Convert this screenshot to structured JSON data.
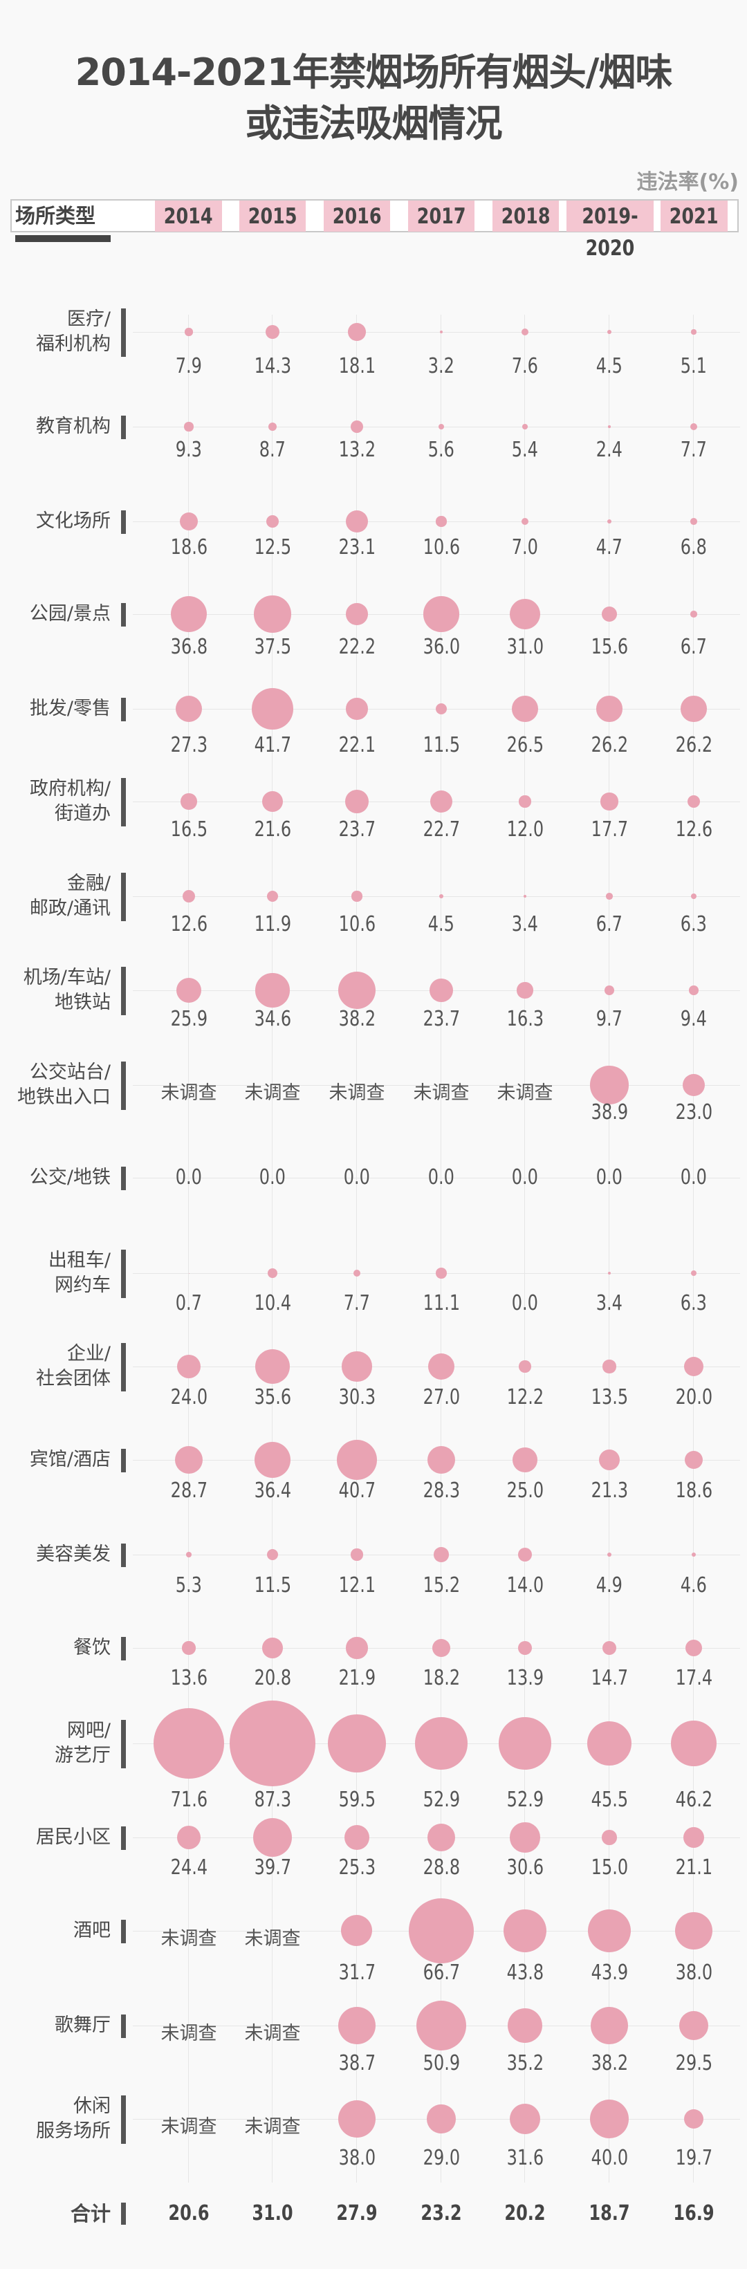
{
  "title": {
    "line1": "2014-2021年禁烟场所有烟头/烟味",
    "line2": "或违法吸烟情况"
  },
  "unit_label": "违法率(%)",
  "header": {
    "type_label": "场所类型",
    "years": [
      "2014",
      "2015",
      "2016",
      "2017",
      "2018",
      "2019-2020",
      "2021"
    ]
  },
  "colors": {
    "bubble": "#e9a3b3",
    "year_chip": "#f4c6d1",
    "text": "#4a4a4a"
  },
  "not_surveyed_label": "未调查",
  "chart_data": {
    "type": "bubble-table",
    "title": "2014-2021年禁烟场所有烟头/烟味或违法吸烟情况",
    "value_label": "违法率(%)",
    "categories": [
      "2014",
      "2015",
      "2016",
      "2017",
      "2018",
      "2019-2020",
      "2021"
    ],
    "rows": [
      {
        "label": [
          "医疗/",
          "福利机构"
        ],
        "values": [
          7.9,
          14.3,
          18.1,
          3.2,
          7.6,
          4.5,
          5.1
        ]
      },
      {
        "label": [
          "教育机构"
        ],
        "values": [
          9.3,
          8.7,
          13.2,
          5.6,
          5.4,
          2.4,
          7.7
        ]
      },
      {
        "label": [
          "文化场所"
        ],
        "values": [
          18.6,
          12.5,
          23.1,
          10.6,
          7.0,
          4.7,
          6.8
        ]
      },
      {
        "label": [
          "公园/景点"
        ],
        "values": [
          36.8,
          37.5,
          22.2,
          36.0,
          31.0,
          15.6,
          6.7
        ]
      },
      {
        "label": [
          "批发/零售"
        ],
        "values": [
          27.3,
          41.7,
          22.1,
          11.5,
          26.5,
          26.2,
          26.2
        ]
      },
      {
        "label": [
          "政府机构/",
          "街道办"
        ],
        "values": [
          16.5,
          21.6,
          23.7,
          22.7,
          12.0,
          17.7,
          12.6
        ]
      },
      {
        "label": [
          "金融/",
          "邮政/通讯"
        ],
        "values": [
          12.6,
          11.9,
          10.6,
          4.5,
          3.4,
          6.7,
          6.3
        ]
      },
      {
        "label": [
          "机场/车站/",
          "地铁站"
        ],
        "values": [
          25.9,
          34.6,
          38.2,
          23.7,
          16.3,
          9.7,
          9.4
        ]
      },
      {
        "label": [
          "公交站台/",
          "地铁出入口"
        ],
        "values": [
          null,
          null,
          null,
          null,
          null,
          38.9,
          23.0
        ]
      },
      {
        "label": [
          "公交/地铁"
        ],
        "values": [
          0.0,
          0.0,
          0.0,
          0.0,
          0.0,
          0.0,
          0.0
        ]
      },
      {
        "label": [
          "出租车/",
          "网约车"
        ],
        "values": [
          0.7,
          10.4,
          7.7,
          11.1,
          0.0,
          3.4,
          6.3
        ]
      },
      {
        "label": [
          "企业/",
          "社会团体"
        ],
        "values": [
          24.0,
          35.6,
          30.3,
          27.0,
          12.2,
          13.5,
          20.0
        ]
      },
      {
        "label": [
          "宾馆/酒店"
        ],
        "values": [
          28.7,
          36.4,
          40.7,
          28.3,
          25.0,
          21.3,
          18.6
        ]
      },
      {
        "label": [
          "美容美发"
        ],
        "values": [
          5.3,
          11.5,
          12.1,
          15.2,
          14.0,
          4.9,
          4.6
        ]
      },
      {
        "label": [
          "餐饮"
        ],
        "values": [
          13.6,
          20.8,
          21.9,
          18.2,
          13.9,
          14.7,
          17.4
        ]
      },
      {
        "label": [
          "网吧/",
          "游艺厅"
        ],
        "values": [
          71.6,
          87.3,
          59.5,
          52.9,
          52.9,
          45.5,
          46.2
        ]
      },
      {
        "label": [
          "居民小区"
        ],
        "values": [
          24.4,
          39.7,
          25.3,
          28.8,
          30.6,
          15.0,
          21.1
        ]
      },
      {
        "label": [
          "酒吧"
        ],
        "values": [
          null,
          null,
          31.7,
          66.7,
          43.8,
          43.9,
          38.0
        ]
      },
      {
        "label": [
          "歌舞厅"
        ],
        "values": [
          null,
          null,
          38.7,
          50.9,
          35.2,
          38.2,
          29.5
        ]
      },
      {
        "label": [
          "休闲",
          "服务场所"
        ],
        "values": [
          null,
          null,
          38.0,
          29.0,
          31.6,
          40.0,
          19.7
        ]
      }
    ],
    "total": {
      "label": "合计",
      "values": [
        20.6,
        31.0,
        27.9,
        23.2,
        20.2,
        18.7,
        16.9
      ]
    }
  }
}
